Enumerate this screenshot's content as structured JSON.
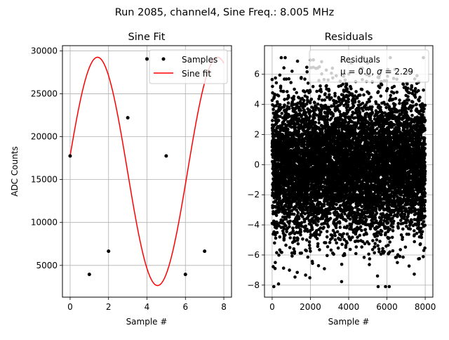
{
  "suptitle": "Run 2085, channel4, Sine Freq.: 8.005 MHz",
  "chart_data": [
    {
      "type": "line",
      "title": "Sine Fit",
      "xlabel": "Sample #",
      "ylabel": "ADC Counts",
      "xlim": [
        -0.4,
        8.4
      ],
      "ylim": [
        1300,
        30600
      ],
      "xticks": [
        0,
        2,
        4,
        6,
        8
      ],
      "yticks": [
        5000,
        10000,
        15000,
        20000,
        25000,
        30000
      ],
      "grid": true,
      "legend": {
        "location": "upper right",
        "entries": [
          "Samples",
          "Sine fit"
        ]
      },
      "series": [
        {
          "name": "Samples",
          "style": "markers",
          "color": "#000000",
          "x": [
            0,
            1,
            2,
            3,
            4,
            5,
            6,
            7
          ],
          "y": [
            17750,
            3950,
            6650,
            22200,
            29050,
            17750,
            3950,
            6650
          ]
        },
        {
          "name": "Sine fit",
          "style": "line",
          "color": "#ff0000",
          "model": {
            "form": "offset + amplitude*sin(omega*x + phase)",
            "offset": 15950,
            "amplitude": 13300,
            "omega": 1.0055,
            "phase": 0.1365
          },
          "x_range": [
            0,
            8
          ]
        }
      ]
    },
    {
      "type": "scatter",
      "title": "Residuals",
      "xlabel": "Sample #",
      "xlim": [
        -400,
        8400
      ],
      "ylim": [
        -8.8,
        7.9
      ],
      "xticks": [
        0,
        2000,
        4000,
        6000,
        8000
      ],
      "yticks": [
        -8,
        -6,
        -4,
        -2,
        0,
        2,
        4,
        6
      ],
      "grid": true,
      "legend": {
        "location": "upper right",
        "entries": [
          "Residuals",
          "μ = 0.0, σ = 2.29"
        ]
      },
      "series": [
        {
          "name": "Residuals",
          "color": "#000000",
          "distribution": {
            "mean": 0.0,
            "sigma": 2.29,
            "n_points": 8000,
            "x_range": [
              0,
              7999
            ],
            "min": -8.1,
            "max": 7.1
          }
        }
      ]
    }
  ]
}
